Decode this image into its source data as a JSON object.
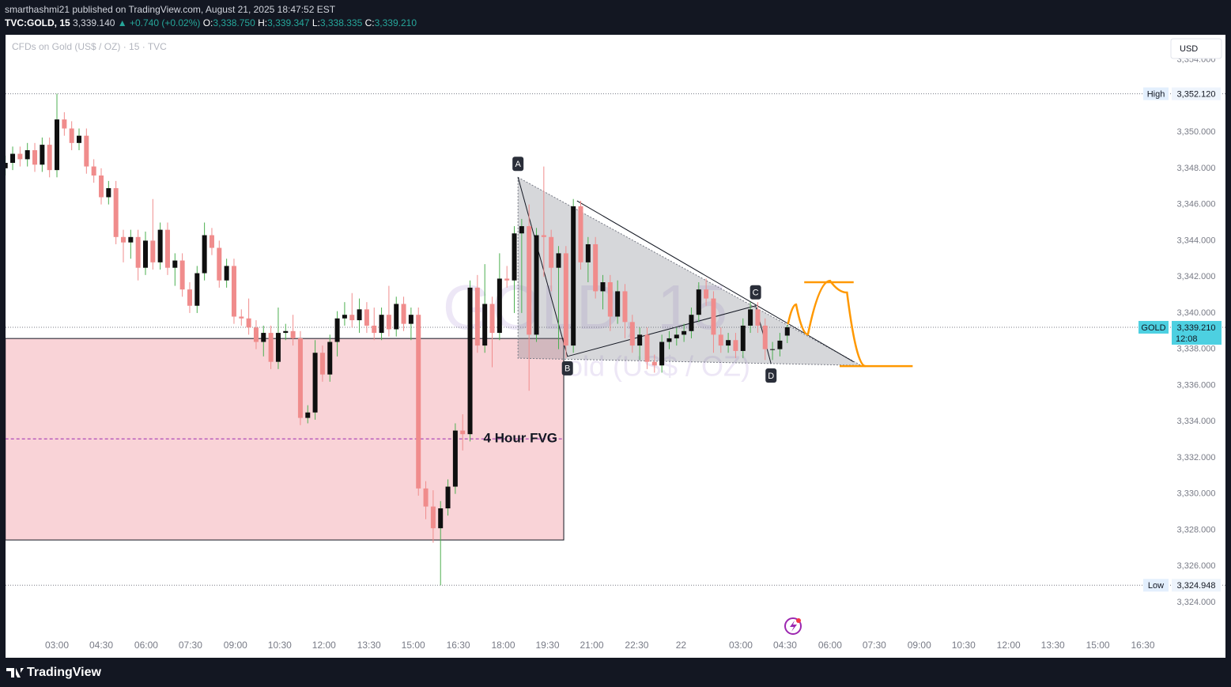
{
  "header": {
    "publisher": "smarthashmi21 published on TradingView.com, August 21, 2025 18:47:52 EST",
    "symbol": "TVC:GOLD, 15",
    "price": "3,339.140",
    "change": "▲ +0.740 (+0.02%)",
    "ohlc": [
      {
        "key": "O:",
        "value": "3,338.750"
      },
      {
        "key": "H:",
        "value": "3,339.347"
      },
      {
        "key": "L:",
        "value": "3,338.335"
      },
      {
        "key": "C:",
        "value": "3,339.210"
      }
    ]
  },
  "footer": {
    "brand": "TradingView"
  },
  "chart_data": {
    "type": "candlestick",
    "legend_title": "CFDs on Gold (US$ / OZ) · 15 · TVC",
    "currency": "USD",
    "watermark": {
      "symbol": "GOLD, 15",
      "description": "CFDs on Gold (US$ / OZ)"
    },
    "colors": {
      "up_body": "#0f0f0f",
      "up_wick": "#4caf50",
      "down": "#f08c8c"
    },
    "open": [
      3348.0,
      3348.3,
      3348.8,
      3348.5,
      3349.0,
      3348.2,
      3349.3,
      3347.9,
      3350.7,
      3350.2,
      3349.4,
      3349.8,
      3348.1,
      3347.6,
      3346.4,
      3346.9,
      3344.2,
      3343.9,
      3344.2,
      3342.5,
      3344.0,
      3342.8,
      3344.6,
      3342.5,
      3342.9,
      3341.3,
      3340.4,
      3342.2,
      3344.3,
      3343.6,
      3341.8,
      3342.6,
      3339.8,
      3339.7,
      3339.2,
      3338.4,
      3338.9,
      3337.3,
      3338.9,
      3339.0,
      3338.6,
      3334.2,
      3334.5,
      3337.8,
      3336.6,
      3338.4,
      3339.7,
      3339.9,
      3339.6,
      3340.2,
      3339.3,
      3338.9,
      3339.9,
      3339.1,
      3340.5,
      3339.4,
      3339.9,
      3330.3,
      3329.3,
      3328.1,
      3329.2,
      3330.4,
      3333.5,
      3333.3,
      3341.4,
      3338.2,
      3340.5,
      3338.9,
      3341.9,
      3341.8,
      3344.4,
      3344.8,
      3338.8,
      3344.3,
      3344.2,
      3342.5,
      3343.3,
      3338.2,
      3345.9,
      3342.8,
      3343.8,
      3341.2,
      3341.7,
      3339.8,
      3341.2,
      3339.5,
      3338.2,
      3338.8,
      3337.3,
      3337.1,
      3338.4,
      3338.6,
      3338.8,
      3339.0,
      3339.9,
      3341.3,
      3340.8,
      3338.8,
      3338.2,
      3338.5,
      3337.9,
      3339.3,
      3340.2,
      3339.3,
      3338.0,
      3338.0,
      3338.75
    ],
    "high": [
      3348.7,
      3349.2,
      3349.2,
      3349.4,
      3349.4,
      3349.7,
      3349.7,
      3352.12,
      3351.1,
      3350.6,
      3350.2,
      3350.2,
      3348.5,
      3348.0,
      3347.3,
      3347.3,
      3344.6,
      3344.6,
      3344.6,
      3344.5,
      3346.3,
      3345.0,
      3345.0,
      3343.3,
      3343.3,
      3341.7,
      3342.6,
      3345.0,
      3344.7,
      3344.0,
      3343.0,
      3343.0,
      3340.2,
      3340.8,
      3339.6,
      3339.3,
      3339.3,
      3340.3,
      3339.4,
      3339.9,
      3339.0,
      3334.9,
      3338.5,
      3338.2,
      3338.8,
      3340.1,
      3340.6,
      3341.1,
      3340.8,
      3340.6,
      3340.3,
      3340.3,
      3341.5,
      3340.9,
      3340.9,
      3340.3,
      3340.3,
      3330.7,
      3330.2,
      3329.6,
      3330.8,
      3333.9,
      3334.4,
      3341.8,
      3342.1,
      3342.7,
      3340.9,
      3343.3,
      3342.6,
      3344.8,
      3345.2,
      3346.0,
      3344.7,
      3348.1,
      3344.6,
      3343.7,
      3343.7,
      3346.3,
      3346.2,
      3344.2,
      3344.2,
      3342.1,
      3342.1,
      3341.8,
      3341.6,
      3339.9,
      3339.2,
      3339.2,
      3337.7,
      3338.8,
      3339.0,
      3339.2,
      3339.4,
      3340.3,
      3341.7,
      3341.9,
      3341.2,
      3339.2,
      3338.9,
      3338.9,
      3339.7,
      3340.6,
      3340.6,
      3339.7,
      3338.4,
      3338.9,
      3339.347
    ],
    "low": [
      3347.6,
      3347.9,
      3348.1,
      3348.1,
      3347.8,
      3347.8,
      3347.5,
      3347.5,
      3349.8,
      3349.0,
      3349.0,
      3347.7,
      3347.2,
      3346.0,
      3346.0,
      3343.8,
      3342.8,
      3343.0,
      3341.8,
      3342.1,
      3342.4,
      3342.4,
      3342.1,
      3341.5,
      3340.9,
      3340.0,
      3340.0,
      3341.8,
      3343.2,
      3341.4,
      3341.4,
      3339.4,
      3339.3,
      3338.8,
      3338.0,
      3337.6,
      3336.9,
      3336.9,
      3338.5,
      3338.2,
      3333.8,
      3333.9,
      3334.1,
      3336.2,
      3336.2,
      3337.6,
      3339.3,
      3339.2,
      3338.9,
      3338.9,
      3338.5,
      3338.5,
      3338.7,
      3338.7,
      3339.0,
      3338.5,
      3329.9,
      3328.6,
      3327.3,
      3324.948,
      3328.8,
      3330.0,
      3332.4,
      3332.9,
      3337.8,
      3337.8,
      3337.0,
      3338.5,
      3341.4,
      3340.0,
      3340.0,
      3335.7,
      3338.4,
      3342.0,
      3341.2,
      3338.0,
      3337.5,
      3337.8,
      3342.4,
      3341.7,
      3340.8,
      3340.2,
      3339.0,
      3339.4,
      3338.6,
      3337.8,
      3337.4,
      3336.9,
      3336.7,
      3336.7,
      3338.0,
      3338.2,
      3338.4,
      3338.6,
      3339.5,
      3340.4,
      3337.8,
      3337.8,
      3337.8,
      3337.5,
      3337.5,
      3338.9,
      3338.9,
      3337.4,
      3337.4,
      3337.6,
      3338.335
    ],
    "close": [
      3348.3,
      3348.8,
      3348.5,
      3349.0,
      3348.2,
      3349.3,
      3347.9,
      3350.7,
      3350.2,
      3349.4,
      3349.8,
      3348.1,
      3347.6,
      3346.4,
      3346.9,
      3344.2,
      3343.9,
      3344.2,
      3342.5,
      3344.0,
      3342.8,
      3344.6,
      3342.5,
      3342.9,
      3341.3,
      3340.4,
      3342.2,
      3344.3,
      3343.6,
      3341.8,
      3342.6,
      3339.8,
      3339.7,
      3339.2,
      3338.4,
      3338.9,
      3337.3,
      3338.9,
      3339.0,
      3338.6,
      3334.2,
      3334.5,
      3337.8,
      3336.6,
      3338.4,
      3339.7,
      3339.9,
      3339.6,
      3340.2,
      3339.3,
      3338.9,
      3339.9,
      3339.1,
      3340.5,
      3339.4,
      3339.9,
      3330.3,
      3329.3,
      3328.1,
      3329.2,
      3330.4,
      3333.5,
      3333.3,
      3341.4,
      3338.2,
      3340.5,
      3338.9,
      3341.9,
      3341.8,
      3344.4,
      3344.8,
      3338.8,
      3344.3,
      3344.2,
      3342.5,
      3343.3,
      3338.2,
      3345.9,
      3342.8,
      3343.8,
      3341.2,
      3341.7,
      3339.8,
      3341.2,
      3339.5,
      3338.2,
      3338.8,
      3337.3,
      3337.1,
      3338.4,
      3338.6,
      3338.8,
      3339.0,
      3339.9,
      3341.3,
      3340.8,
      3338.8,
      3338.2,
      3338.5,
      3337.9,
      3339.3,
      3340.2,
      3339.3,
      3338.0,
      3338.0,
      3338.47,
      3339.21
    ],
    "xlim": [
      0,
      165.4
    ],
    "xticks": [
      {
        "value": 7,
        "label": "03:00"
      },
      {
        "value": 13,
        "label": "04:30"
      },
      {
        "value": 19.1,
        "label": "06:00"
      },
      {
        "value": 25.1,
        "label": "07:30"
      },
      {
        "value": 31.2,
        "label": "09:00"
      },
      {
        "value": 37.2,
        "label": "10:30"
      },
      {
        "value": 43.2,
        "label": "12:00"
      },
      {
        "value": 49.3,
        "label": "13:30"
      },
      {
        "value": 55.3,
        "label": "15:00"
      },
      {
        "value": 61.4,
        "label": "16:30"
      },
      {
        "value": 67.5,
        "label": "18:00"
      },
      {
        "value": 73.5,
        "label": "19:30"
      },
      {
        "value": 79.5,
        "label": "21:00"
      },
      {
        "value": 85.6,
        "label": "22:30"
      },
      {
        "value": 91.6,
        "label": "22"
      },
      {
        "value": 99.7,
        "label": "03:00"
      },
      {
        "value": 105.7,
        "label": "04:30"
      },
      {
        "value": 111.8,
        "label": "06:00"
      },
      {
        "value": 117.8,
        "label": "07:30"
      },
      {
        "value": 123.9,
        "label": "09:00"
      },
      {
        "value": 129.9,
        "label": "10:30"
      },
      {
        "value": 136,
        "label": "12:00"
      },
      {
        "value": 142,
        "label": "13:30"
      },
      {
        "value": 148.1,
        "label": "15:00"
      },
      {
        "value": 154.2,
        "label": "16:30"
      }
    ],
    "ylim": [
      3320.94,
      3355.38
    ],
    "yticks": [
      {
        "value": 3324,
        "label": "3,324.000"
      },
      {
        "value": 3326,
        "label": "3,326.000"
      },
      {
        "value": 3328,
        "label": "3,328.000"
      },
      {
        "value": 3330,
        "label": "3,330.000"
      },
      {
        "value": 3332,
        "label": "3,332.000"
      },
      {
        "value": 3334,
        "label": "3,334.000"
      },
      {
        "value": 3336,
        "label": "3,336.000"
      },
      {
        "value": 3338,
        "label": "3,338.000"
      },
      {
        "value": 3340,
        "label": "3,340.000"
      },
      {
        "value": 3342,
        "label": "3,342.000"
      },
      {
        "value": 3344,
        "label": "3,344.000"
      },
      {
        "value": 3346,
        "label": "3,346.000"
      },
      {
        "value": 3348,
        "label": "3,348.000"
      },
      {
        "value": 3350,
        "label": "3,350.000"
      },
      {
        "value": 3352,
        "label": "3,352.000"
      },
      {
        "value": 3354,
        "label": "3,354.000"
      }
    ],
    "grid": false,
    "high_marker": {
      "name": "High",
      "value": 3352.12,
      "label": "3,352.120"
    },
    "low_marker": {
      "name": "Low",
      "value": 3324.948,
      "label": "3,324.948"
    },
    "last_price": {
      "name": "GOLD",
      "value": 3339.21,
      "label": "3,339.210",
      "countdown": "12:08",
      "color": "#4dd0e1"
    },
    "fvg": {
      "text": "4 Hour FVG",
      "x": [
        0,
        75.7
      ],
      "y": [
        3327.45,
        3338.59
      ],
      "mid": 3333.04,
      "color": "#f9d3d7"
    },
    "pattern": [
      {
        "label": "A",
        "x": 69.5,
        "y": 3347.5
      },
      {
        "label": "B",
        "x": 76.2,
        "y": 3337.6
      },
      {
        "label": "C",
        "x": 101.7,
        "y": 3340.4
      },
      {
        "label": "D",
        "x": 103.8,
        "y": 3337.2
      }
    ],
    "triangle": {
      "x": [
        69.5,
        116,
        69.5
      ],
      "y": [
        3347.5,
        3337.1,
        3337.5
      ]
    },
    "trendline": {
      "x": [
        77.5,
        115
      ],
      "y": [
        3346.2,
        3337.3
      ]
    },
    "projection": {
      "color": "#ff9800",
      "x": [
        106.1,
        107.2,
        108.8,
        111.8,
        114.1,
        116.6
      ],
      "y": [
        3339.38,
        3340.47,
        3338.81,
        3341.78,
        3341.13,
        3337.06
      ]
    },
    "levels": [
      {
        "x": [
          108.3,
          115
        ],
        "y": 3341.7
      },
      {
        "x": [
          113.1,
          123
        ],
        "y": 3337.06
      }
    ]
  }
}
